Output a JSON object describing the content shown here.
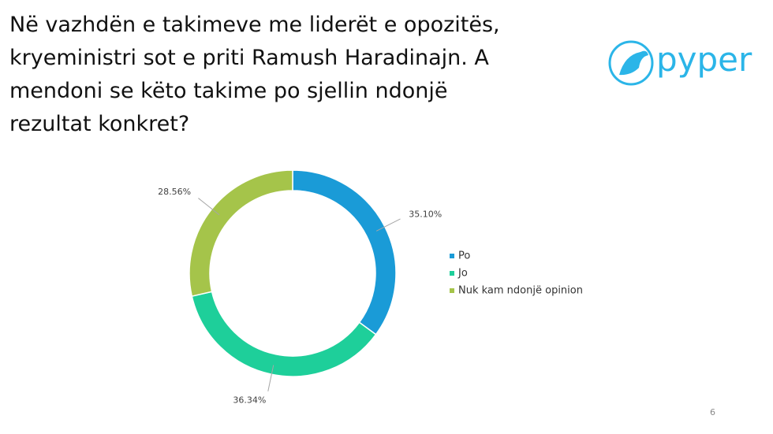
{
  "title_lines": [
    "Në vazhdën e takimeve me liderët e opozitës,",
    "kryeministri sot e priti Ramush Haradinajn. A",
    "mendoni se këto takime po sjellin ndonjë",
    "rezultat konkret?"
  ],
  "logo": "pyper",
  "page_number": "6",
  "chart_data": {
    "type": "donut",
    "categories": [
      "Po",
      "Jo",
      "Nuk kam ndonjë opinion"
    ],
    "values": [
      35.1,
      36.34,
      28.56
    ],
    "value_labels": [
      "35.10%",
      "36.34%",
      "28.56%"
    ],
    "colors": [
      "#1a9bd7",
      "#1ecf9a",
      "#a5c44a"
    ],
    "legend": "right"
  }
}
